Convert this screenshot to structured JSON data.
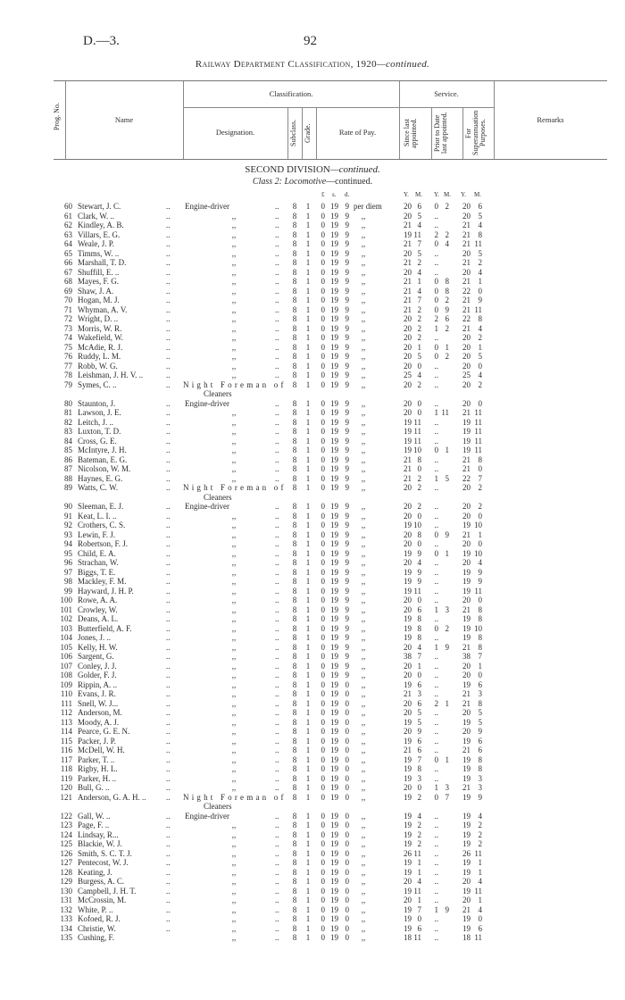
{
  "page": {
    "id": "D.—3.",
    "number": "92"
  },
  "title": {
    "main": "Railway Department Classification, 1920",
    "suffix": "—continued."
  },
  "header": {
    "prog_no": "Prog. No.",
    "name": "Name",
    "classification": "Classification.",
    "designation": "Designation.",
    "subclass": "Subclass.",
    "grade": "Grade.",
    "rate_of_pay": "Rate of Pay.",
    "service": "Service.",
    "since_last": "Since last appointed.",
    "prior_to": "Prior to Date last appointed.",
    "superannuation": "For Superannuation Purposes.",
    "remarks": "Remarks"
  },
  "section": {
    "division": "SECOND DIVISION",
    "division_suffix": "—continued.",
    "class_prefix": "Class 2: ",
    "class_name": "Locomotive",
    "class_suffix": "—continued."
  },
  "units": {
    "pounds": "£",
    "shillings": "s.",
    "pence": "d.",
    "since_y": "Y.",
    "since_m": "M.",
    "prior_y": "Y.",
    "prior_m": "M.",
    "super_y": "Y.",
    "super_m": "M."
  },
  "columns": [
    "prog_no",
    "name",
    "designation",
    "subclass",
    "grade",
    "pay_pounds",
    "pay_shillings",
    "pay_pence",
    "pay_period",
    "since_years",
    "since_months",
    "prior_years",
    "prior_months",
    "super_years",
    "super_months"
  ],
  "rows": [
    [
      "60",
      "Stewart, J. C.",
      "Engine-driver",
      "8",
      "1",
      "0",
      "19",
      "9",
      "per diem",
      "20",
      "6",
      "0",
      "2",
      "20",
      "6"
    ],
    [
      "61",
      "Clark, W. ..",
      ",,",
      "8",
      "1",
      "0",
      "19",
      "9",
      ",,",
      "20",
      "5",
      "..",
      "",
      "20",
      "5"
    ],
    [
      "62",
      "Kindley, A. B.",
      ",,",
      "8",
      "1",
      "0",
      "19",
      "9",
      ",,",
      "21",
      "4",
      "..",
      "",
      "21",
      "4"
    ],
    [
      "63",
      "Villars, E. G.",
      ",,",
      "8",
      "1",
      "0",
      "19",
      "9",
      ",,",
      "19",
      "11",
      "2",
      "2",
      "21",
      "8"
    ],
    [
      "64",
      "Weale, J. P.",
      ",,",
      "8",
      "1",
      "0",
      "19",
      "9",
      ",,",
      "21",
      "7",
      "0",
      "4",
      "21",
      "11"
    ],
    [
      "65",
      "Timms, W. ..",
      ",,",
      "8",
      "1",
      "0",
      "19",
      "9",
      ",,",
      "20",
      "5",
      "..",
      "",
      "20",
      "5"
    ],
    [
      "66",
      "Marshall, T. D.",
      ",,",
      "8",
      "1",
      "0",
      "19",
      "9",
      ",,",
      "21",
      "2",
      "..",
      "",
      "21",
      "2"
    ],
    [
      "67",
      "Shuffill, E. ..",
      ",,",
      "8",
      "1",
      "0",
      "19",
      "9",
      ",,",
      "20",
      "4",
      "..",
      "",
      "20",
      "4"
    ],
    [
      "68",
      "Mayes, F. G.",
      ",,",
      "8",
      "1",
      "0",
      "19",
      "9",
      ",,",
      "21",
      "1",
      "0",
      "8",
      "21",
      "1"
    ],
    [
      "69",
      "Shaw, J. A.",
      ",,",
      "8",
      "1",
      "0",
      "19",
      "9",
      ",,",
      "21",
      "4",
      "0",
      "8",
      "22",
      "0"
    ],
    [
      "70",
      "Hogan, M. J.",
      ",,",
      "8",
      "1",
      "0",
      "19",
      "9",
      ",,",
      "21",
      "7",
      "0",
      "2",
      "21",
      "9"
    ],
    [
      "71",
      "Whyman, A. V.",
      ",,",
      "8",
      "1",
      "0",
      "19",
      "9",
      ",,",
      "21",
      "2",
      "0",
      "9",
      "21",
      "11"
    ],
    [
      "72",
      "Wright, D. ..",
      ",,",
      "8",
      "1",
      "0",
      "19",
      "9",
      ",,",
      "20",
      "2",
      "2",
      "6",
      "22",
      "8"
    ],
    [
      "73",
      "Morris, W. R.",
      ",,",
      "8",
      "1",
      "0",
      "19",
      "9",
      ",,",
      "20",
      "2",
      "1",
      "2",
      "21",
      "4"
    ],
    [
      "74",
      "Wakefield, W.",
      ",,",
      "8",
      "1",
      "0",
      "19",
      "9",
      ",,",
      "20",
      "2",
      "..",
      "",
      "20",
      "2"
    ],
    [
      "75",
      "McAdie, R. J.",
      ",,",
      "8",
      "1",
      "0",
      "19",
      "9",
      ",,",
      "20",
      "1",
      "0",
      "1",
      "20",
      "1"
    ],
    [
      "76",
      "Ruddy, L. M.",
      ",,",
      "8",
      "1",
      "0",
      "19",
      "9",
      ",,",
      "20",
      "5",
      "0",
      "2",
      "20",
      "5"
    ],
    [
      "77",
      "Robb, W. G.",
      ",,",
      "8",
      "1",
      "0",
      "19",
      "9",
      ",,",
      "20",
      "0",
      "..",
      "",
      "20",
      "0"
    ],
    [
      "78",
      "Leishman, J. H. V. ..",
      ",,",
      "8",
      "1",
      "0",
      "19",
      "9",
      ",,",
      "25",
      "4",
      "..",
      "",
      "25",
      "4"
    ],
    [
      "79",
      "Symes, C. ..",
      "Night Foreman of|Cleaners",
      "8",
      "1",
      "0",
      "19",
      "9",
      ",,",
      "20",
      "2",
      "..",
      "",
      "20",
      "2"
    ],
    [
      "80",
      "Staunton, J.",
      "Engine-driver",
      "8",
      "1",
      "0",
      "19",
      "9",
      ",,",
      "20",
      "0",
      "..",
      "",
      "20",
      "0"
    ],
    [
      "81",
      "Lawson, J. E.",
      ",,",
      "8",
      "1",
      "0",
      "19",
      "9",
      ",,",
      "20",
      "0",
      "1",
      "11",
      "21",
      "11"
    ],
    [
      "82",
      "Leitch, J. ..",
      ",,",
      "8",
      "1",
      "0",
      "19",
      "9",
      ",,",
      "19",
      "11",
      "..",
      "",
      "19",
      "11"
    ],
    [
      "83",
      "Luxton, T. D.",
      ",,",
      "8",
      "1",
      "0",
      "19",
      "9",
      ",,",
      "19",
      "11",
      "..",
      "",
      "19",
      "11"
    ],
    [
      "84",
      "Cross, G. E.",
      ",,",
      "8",
      "1",
      "0",
      "19",
      "9",
      ",,",
      "19",
      "11",
      "..",
      "",
      "19",
      "11"
    ],
    [
      "85",
      "McIntyre, J. H.",
      ",,",
      "8",
      "1",
      "0",
      "19",
      "9",
      ",,",
      "19",
      "10",
      "0",
      "1",
      "19",
      "11"
    ],
    [
      "86",
      "Bateman, E. G.",
      ",,",
      "8",
      "1",
      "0",
      "19",
      "9",
      ",,",
      "21",
      "8",
      "..",
      "",
      "21",
      "8"
    ],
    [
      "87",
      "Nicolson, W. M.",
      ",,",
      "8",
      "1",
      "0",
      "19",
      "9",
      ",,",
      "21",
      "0",
      "..",
      "",
      "21",
      "0"
    ],
    [
      "88",
      "Haynes, E. G.",
      ",,",
      "8",
      "1",
      "0",
      "19",
      "9",
      ",,",
      "21",
      "2",
      "1",
      "5",
      "22",
      "7"
    ],
    [
      "89",
      "Watts, C. W.",
      "Night Foreman of|Cleaners",
      "8",
      "1",
      "0",
      "19",
      "9",
      ",,",
      "20",
      "2",
      "..",
      "",
      "20",
      "2"
    ],
    [
      "90",
      "Sleeman, E. J.",
      "Engine-driver",
      "8",
      "1",
      "0",
      "19",
      "9",
      ",,",
      "20",
      "2",
      "..",
      "",
      "20",
      "2"
    ],
    [
      "91",
      "Keat, L. I. ..",
      ",,",
      "8",
      "1",
      "0",
      "19",
      "9",
      ",,",
      "20",
      "0",
      "..",
      "",
      "20",
      "0"
    ],
    [
      "92",
      "Crothers, C. S.",
      ",,",
      "8",
      "1",
      "0",
      "19",
      "9",
      ",,",
      "19",
      "10",
      "..",
      "",
      "19",
      "10"
    ],
    [
      "93",
      "Lewin, F. J.",
      ",,",
      "8",
      "1",
      "0",
      "19",
      "9",
      ",,",
      "20",
      "8",
      "0",
      "9",
      "21",
      "1"
    ],
    [
      "94",
      "Robertson, F. J.",
      ",,",
      "8",
      "1",
      "0",
      "19",
      "9",
      ",,",
      "20",
      "0",
      "..",
      "",
      "20",
      "0"
    ],
    [
      "95",
      "Child, E. A.",
      ",,",
      "8",
      "1",
      "0",
      "19",
      "9",
      ",,",
      "19",
      "9",
      "0",
      "1",
      "19",
      "10"
    ],
    [
      "96",
      "Strachan, W.",
      ",,",
      "8",
      "1",
      "0",
      "19",
      "9",
      ",,",
      "20",
      "4",
      "..",
      "",
      "20",
      "4"
    ],
    [
      "97",
      "Biggs, T. E.",
      ",,",
      "8",
      "1",
      "0",
      "19",
      "9",
      ",,",
      "19",
      "9",
      "..",
      "",
      "19",
      "9"
    ],
    [
      "98",
      "Mackley, F. M.",
      ",,",
      "8",
      "1",
      "0",
      "19",
      "9",
      ",,",
      "19",
      "9",
      "..",
      "",
      "19",
      "9"
    ],
    [
      "99",
      "Hayward, J. H. P.",
      ",,",
      "8",
      "1",
      "0",
      "19",
      "9",
      ",,",
      "19",
      "11",
      "..",
      "",
      "19",
      "11"
    ],
    [
      "100",
      "Rowe, A. A.",
      ",,",
      "8",
      "1",
      "0",
      "19",
      "9",
      ",,",
      "20",
      "0",
      "..",
      "",
      "20",
      "0"
    ],
    [
      "101",
      "Crowley, W.",
      ",,",
      "8",
      "1",
      "0",
      "19",
      "9",
      ",,",
      "20",
      "6",
      "1",
      "3",
      "21",
      "8"
    ],
    [
      "102",
      "Deans, A. L.",
      ",,",
      "8",
      "1",
      "0",
      "19",
      "9",
      ",,",
      "19",
      "8",
      "..",
      "",
      "19",
      "8"
    ],
    [
      "103",
      "Butterfield, A. F.",
      ",,",
      "8",
      "1",
      "0",
      "19",
      "9",
      ",,",
      "19",
      "8",
      "0",
      "2",
      "19",
      "10"
    ],
    [
      "104",
      "Jones, J. ..",
      ",,",
      "8",
      "1",
      "0",
      "19",
      "9",
      ",,",
      "19",
      "8",
      "..",
      "",
      "19",
      "8"
    ],
    [
      "105",
      "Kelly, H. W.",
      ",,",
      "8",
      "1",
      "0",
      "19",
      "9",
      ",,",
      "20",
      "4",
      "1",
      "9",
      "21",
      "8"
    ],
    [
      "106",
      "Sargent, G.",
      ",,",
      "8",
      "1",
      "0",
      "19",
      "9",
      ",,",
      "38",
      "7",
      "..",
      "",
      "38",
      "7"
    ],
    [
      "107",
      "Conley, J. J.",
      ",,",
      "8",
      "1",
      "0",
      "19",
      "9",
      ",,",
      "20",
      "1",
      "..",
      "",
      "20",
      "1"
    ],
    [
      "108",
      "Golder, F. J.",
      ",,",
      "8",
      "1",
      "0",
      "19",
      "9",
      ",,",
      "20",
      "0",
      "..",
      "",
      "20",
      "0"
    ],
    [
      "109",
      "Rippin, A. ..",
      ",,",
      "8",
      "1",
      "0",
      "19",
      "0",
      ",,",
      "19",
      "6",
      "..",
      "",
      "19",
      "6"
    ],
    [
      "110",
      "Evans, J. R.",
      ",,",
      "8",
      "1",
      "0",
      "19",
      "0",
      ",,",
      "21",
      "3",
      "..",
      "",
      "21",
      "3"
    ],
    [
      "111",
      "Snell, W. J...",
      ",,",
      "8",
      "1",
      "0",
      "19",
      "0",
      ",,",
      "20",
      "6",
      "2",
      "1",
      "21",
      "8"
    ],
    [
      "112",
      "Anderson, M.",
      ",,",
      "8",
      "1",
      "0",
      "19",
      "0",
      ",,",
      "20",
      "5",
      "..",
      "",
      "20",
      "5"
    ],
    [
      "113",
      "Moody, A. J.",
      ",,",
      "8",
      "1",
      "0",
      "19",
      "0",
      ",,",
      "19",
      "5",
      "..",
      "",
      "19",
      "5"
    ],
    [
      "114",
      "Pearce, G. E. N.",
      ",,",
      "8",
      "1",
      "0",
      "19",
      "0",
      ",,",
      "20",
      "9",
      "..",
      "",
      "20",
      "9"
    ],
    [
      "115",
      "Packer, J. P.",
      ",,",
      "8",
      "1",
      "0",
      "19",
      "0",
      ",,",
      "19",
      "6",
      "..",
      "",
      "19",
      "6"
    ],
    [
      "116",
      "McDell, W. H.",
      ",,",
      "8",
      "1",
      "0",
      "19",
      "0",
      ",,",
      "21",
      "6",
      "..",
      "",
      "21",
      "6"
    ],
    [
      "117",
      "Parker, T. ..",
      ",,",
      "8",
      "1",
      "0",
      "19",
      "0",
      ",,",
      "19",
      "7",
      "0",
      "1",
      "19",
      "8"
    ],
    [
      "118",
      "Rigby, H. L.",
      ",,",
      "8",
      "1",
      "0",
      "19",
      "0",
      ",,",
      "19",
      "8",
      "..",
      "",
      "19",
      "8"
    ],
    [
      "119",
      "Parker, H. ..",
      ",,",
      "8",
      "1",
      "0",
      "19",
      "0",
      ",,",
      "19",
      "3",
      "..",
      "",
      "19",
      "3"
    ],
    [
      "120",
      "Bull, G. ..",
      ",,",
      "8",
      "1",
      "0",
      "19",
      "0",
      ",,",
      "20",
      "0",
      "1",
      "3",
      "21",
      "3"
    ],
    [
      "121",
      "Anderson, G. A. H. ..",
      "Night Foreman of|Cleaners",
      "8",
      "1",
      "0",
      "19",
      "0",
      ",,",
      "19",
      "2",
      "0",
      "7",
      "19",
      "9"
    ],
    [
      "122",
      "Gall, W. ..",
      "Engine-driver",
      "8",
      "1",
      "0",
      "19",
      "0",
      ",,",
      "19",
      "4",
      "..",
      "",
      "19",
      "4"
    ],
    [
      "123",
      "Page, F. ..",
      ",,",
      "8",
      "1",
      "0",
      "19",
      "0",
      ",,",
      "19",
      "2",
      "..",
      "",
      "19",
      "2"
    ],
    [
      "124",
      "Lindsay, R...",
      ",,",
      "8",
      "1",
      "0",
      "19",
      "0",
      ",,",
      "19",
      "2",
      "..",
      "",
      "19",
      "2"
    ],
    [
      "125",
      "Blackie, W. J.",
      ",,",
      "8",
      "1",
      "0",
      "19",
      "0",
      ",,",
      "19",
      "2",
      "..",
      "",
      "19",
      "2"
    ],
    [
      "126",
      "Smith, S. C. T. J.",
      ",,",
      "8",
      "1",
      "0",
      "19",
      "0",
      ",,",
      "26",
      "11",
      "..",
      "",
      "26",
      "11"
    ],
    [
      "127",
      "Pentecost, W. J.",
      ",,",
      "8",
      "1",
      "0",
      "19",
      "0",
      ",,",
      "19",
      "1",
      "..",
      "",
      "19",
      "1"
    ],
    [
      "128",
      "Keating, J.",
      ",,",
      "8",
      "1",
      "0",
      "19",
      "0",
      ",,",
      "19",
      "1",
      "..",
      "",
      "19",
      "1"
    ],
    [
      "129",
      "Burgess, A. C.",
      ",,",
      "8",
      "1",
      "0",
      "19",
      "0",
      ",,",
      "20",
      "4",
      "..",
      "",
      "20",
      "4"
    ],
    [
      "130",
      "Campbell, J. H. T.",
      ",,",
      "8",
      "1",
      "0",
      "19",
      "0",
      ",,",
      "19",
      "11",
      "..",
      "",
      "19",
      "11"
    ],
    [
      "131",
      "McCrossin, M.",
      ",,",
      "8",
      "1",
      "0",
      "19",
      "0",
      ",,",
      "20",
      "1",
      "..",
      "",
      "20",
      "1"
    ],
    [
      "132",
      "White, P. ..",
      ",,",
      "8",
      "1",
      "0",
      "19",
      "0",
      ",,",
      "19",
      "7",
      "1",
      "9",
      "21",
      "4"
    ],
    [
      "133",
      "Kofoed, R. J.",
      ",,",
      "8",
      "1",
      "0",
      "19",
      "0",
      ",,",
      "19",
      "0",
      "..",
      "",
      "19",
      "0"
    ],
    [
      "134",
      "Christie, W.",
      ",,",
      "8",
      "1",
      "0",
      "19",
      "0",
      ",,",
      "19",
      "6",
      "..",
      "",
      "19",
      "6"
    ],
    [
      "135",
      "Cushing, F.",
      ",,",
      "8",
      "1",
      "0",
      "19",
      "0",
      ",,",
      "18",
      "11",
      "..",
      "",
      "18",
      "11"
    ]
  ]
}
